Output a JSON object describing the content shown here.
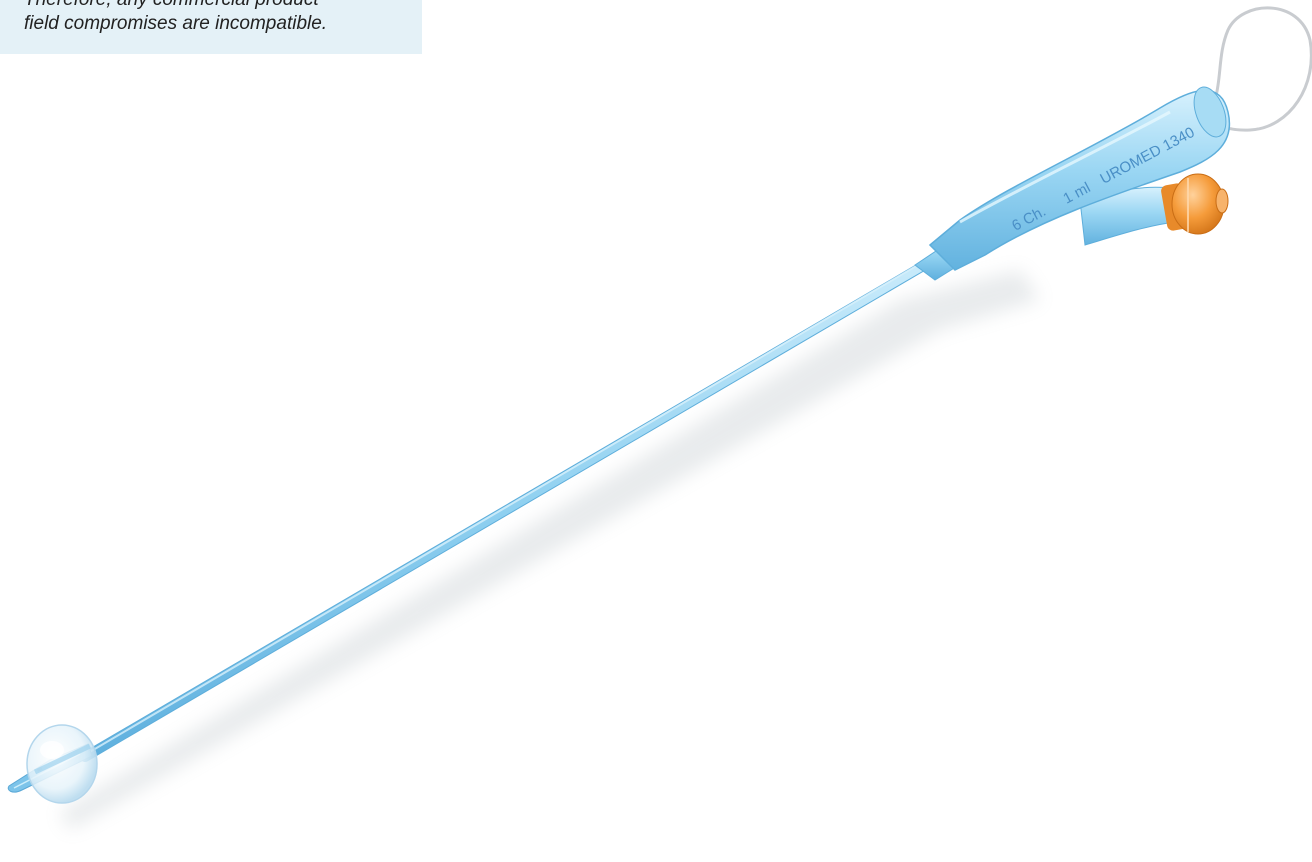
{
  "note": {
    "line1": "Therefore, any commercial product",
    "line2": "field compromises are incompatible."
  },
  "catheter": {
    "print_size": "6 Ch.",
    "print_volume": "1 ml",
    "print_brand": "UROMED 1340"
  },
  "colors": {
    "tube": "#8ed0ef",
    "tube_light": "#c6e8f8",
    "tube_dark": "#5fb3e0",
    "valve": "#f39a3c",
    "note_background": "#e4f1f7",
    "print": "#4a8fc6"
  }
}
